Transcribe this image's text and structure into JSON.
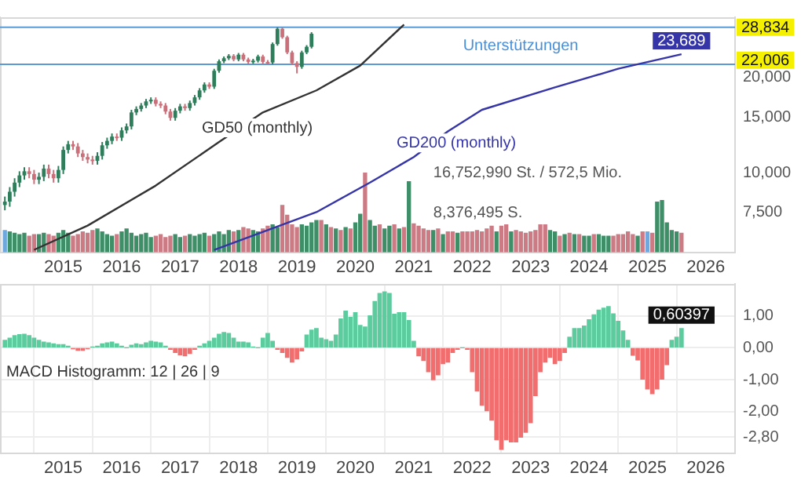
{
  "chart_data": [
    {
      "type": "candlestick",
      "x": [
        "2014-01",
        "2014-02",
        "2014-03",
        "2014-04",
        "2014-05",
        "2014-06",
        "2014-07",
        "2014-08",
        "2014-09",
        "2014-10",
        "2014-11",
        "2014-12",
        "2015-01",
        "2015-02",
        "2015-03",
        "2015-04",
        "2015-05",
        "2015-06",
        "2015-07",
        "2015-08",
        "2015-09",
        "2015-10",
        "2015-11",
        "2015-12",
        "2016-01",
        "2016-02",
        "2016-03",
        "2016-04",
        "2016-05",
        "2016-06",
        "2016-07",
        "2016-08",
        "2016-09",
        "2016-10",
        "2016-11",
        "2016-12",
        "2017-01",
        "2017-02",
        "2017-03",
        "2017-04",
        "2017-05",
        "2017-06",
        "2017-07",
        "2017-08",
        "2017-09",
        "2017-10",
        "2017-11",
        "2017-12",
        "2018-01",
        "2018-02",
        "2018-03",
        "2018-04",
        "2018-05",
        "2018-06",
        "2018-07",
        "2018-08",
        "2018-09",
        "2018-10",
        "2018-11",
        "2018-12",
        "2019-01",
        "2019-02",
        "2019-03",
        "2019-04",
        "2019-05",
        "2019-06",
        "2019-07",
        "2019-08",
        "2019-09",
        "2019-10",
        "2019-11",
        "2019-12",
        "2020-01",
        "2020-02",
        "2020-03",
        "2020-04",
        "2020-05",
        "2020-06",
        "2020-07",
        "2020-08",
        "2020-09",
        "2020-10",
        "2020-11",
        "2020-12",
        "2021-01",
        "2021-02",
        "2021-03",
        "2021-04",
        "2021-05",
        "2021-06",
        "2021-07",
        "2021-08",
        "2021-09",
        "2021-10",
        "2021-11",
        "2021-12",
        "2022-01",
        "2022-02",
        "2022-03",
        "2022-04",
        "2022-05",
        "2022-06",
        "2022-07",
        "2022-08",
        "2022-09",
        "2022-10",
        "2022-11",
        "2022-12",
        "2023-01",
        "2023-02",
        "2023-03",
        "2023-04",
        "2023-05",
        "2023-06",
        "2023-07",
        "2023-08",
        "2023-09",
        "2023-10",
        "2023-11",
        "2023-12",
        "2024-01",
        "2024-02",
        "2024-03",
        "2024-04",
        "2024-05",
        "2024-06",
        "2024-07",
        "2024-08",
        "2024-09",
        "2024-10",
        "2024-11",
        "2024-12",
        "2025-01",
        "2025-02",
        "2025-03",
        "2025-04",
        "2025-05",
        "2025-06",
        "2025-07",
        "2025-08"
      ],
      "ohlc": [
        [
          7900,
          8400,
          7600,
          8100
        ],
        [
          8100,
          9000,
          7800,
          8700
        ],
        [
          8700,
          9600,
          8400,
          9300
        ],
        [
          9300,
          10100,
          9000,
          9800
        ],
        [
          9800,
          10400,
          9500,
          10100
        ],
        [
          10100,
          10400,
          9600,
          9900
        ],
        [
          9900,
          10200,
          9200,
          9500
        ],
        [
          9500,
          10000,
          9200,
          9700
        ],
        [
          9700,
          10600,
          9400,
          10300
        ],
        [
          10300,
          10600,
          9600,
          9900
        ],
        [
          9900,
          10200,
          9300,
          9600
        ],
        [
          9600,
          10500,
          9300,
          10200
        ],
        [
          10200,
          12100,
          9900,
          11800
        ],
        [
          11800,
          12600,
          11500,
          12300
        ],
        [
          12300,
          12600,
          11800,
          12100
        ],
        [
          12100,
          12400,
          11200,
          11500
        ],
        [
          11500,
          11800,
          10900,
          11200
        ],
        [
          11200,
          11500,
          10700,
          11000
        ],
        [
          11000,
          11300,
          10600,
          10900
        ],
        [
          10900,
          11600,
          10600,
          11300
        ],
        [
          11300,
          12500,
          11000,
          12200
        ],
        [
          12200,
          12900,
          11900,
          12600
        ],
        [
          12600,
          13300,
          12300,
          13000
        ],
        [
          13000,
          13300,
          12600,
          12900
        ],
        [
          12900,
          13900,
          12600,
          13600
        ],
        [
          13600,
          14300,
          13300,
          14000
        ],
        [
          14000,
          15800,
          13700,
          15500
        ],
        [
          15500,
          16200,
          15200,
          15900
        ],
        [
          15900,
          16600,
          15600,
          16300
        ],
        [
          16300,
          17100,
          16000,
          16800
        ],
        [
          16800,
          17300,
          16500,
          17000
        ],
        [
          17000,
          17300,
          16200,
          16500
        ],
        [
          16500,
          16800,
          16000,
          16300
        ],
        [
          16300,
          16600,
          15300,
          15600
        ],
        [
          15600,
          15900,
          14600,
          14900
        ],
        [
          14900,
          16000,
          14600,
          15700
        ],
        [
          15700,
          16500,
          15400,
          16200
        ],
        [
          16200,
          16500,
          15700,
          16000
        ],
        [
          16000,
          16900,
          15700,
          16600
        ],
        [
          16600,
          17600,
          16300,
          17300
        ],
        [
          17300,
          18500,
          17000,
          18200
        ],
        [
          18200,
          19300,
          17900,
          19000
        ],
        [
          19000,
          19300,
          18400,
          18700
        ],
        [
          18700,
          21300,
          18400,
          21000
        ],
        [
          21000,
          22800,
          20700,
          22500
        ],
        [
          22500,
          23300,
          22200,
          23000
        ],
        [
          23000,
          23700,
          22700,
          23400
        ],
        [
          23400,
          23700,
          22500,
          22800
        ],
        [
          22800,
          23900,
          22500,
          23600
        ],
        [
          23600,
          23900,
          22500,
          22800
        ],
        [
          22800,
          23100,
          22100,
          22400
        ],
        [
          22400,
          22900,
          22100,
          22600
        ],
        [
          22600,
          23600,
          22300,
          23300
        ],
        [
          23300,
          23600,
          22100,
          22400
        ],
        [
          22400,
          22700,
          22000,
          22300
        ],
        [
          22300,
          25800,
          22000,
          25500
        ],
        [
          25500,
          28800,
          25200,
          28500
        ],
        [
          28500,
          28800,
          26500,
          26800
        ],
        [
          26800,
          27100,
          23700,
          24000
        ],
        [
          24000,
          24300,
          21900,
          22200
        ],
        [
          22200,
          22500,
          20600,
          21600
        ],
        [
          21600,
          24300,
          21300,
          24000
        ],
        [
          24000,
          25300,
          23700,
          25000
        ],
        [
          25000,
          27800,
          24700,
          27500
        ],
        null,
        null,
        null,
        null,
        null,
        null,
        null,
        null,
        null,
        null,
        null,
        null,
        null,
        null,
        null,
        null,
        null,
        null,
        null,
        null,
        null,
        null,
        null,
        null,
        null,
        null,
        null,
        null,
        null,
        null,
        null,
        null,
        null,
        null,
        null,
        null,
        null,
        null,
        null,
        null,
        null,
        null,
        null,
        null,
        null,
        null,
        null,
        null,
        null,
        null,
        null,
        null,
        null,
        null,
        null,
        null,
        null,
        null,
        null,
        null,
        null,
        null,
        null,
        null,
        null,
        null,
        null,
        null,
        null,
        null,
        null,
        null,
        null,
        null,
        null,
        null
      ],
      "colors": [
        "#2e7d5b",
        "#2e7d5b",
        "#2e7d5b",
        "#2e7d5b",
        "#2e7d5b",
        "#c9707a",
        "#c9707a",
        "#2e7d5b",
        "#2e7d5b",
        "#c9707a",
        "#c9707a",
        "#2e7d5b",
        "#2e7d5b",
        "#2e7d5b",
        "#c9707a",
        "#c9707a",
        "#c9707a",
        "#c9707a",
        "#c9707a",
        "#2e7d5b",
        "#2e7d5b",
        "#2e7d5b",
        "#2e7d5b",
        "#c9707a",
        "#2e7d5b",
        "#2e7d5b",
        "#2e7d5b",
        "#2e7d5b",
        "#2e7d5b",
        "#2e7d5b",
        "#2e7d5b",
        "#c9707a",
        "#c9707a",
        "#c9707a",
        "#c9707a",
        "#2e7d5b",
        "#2e7d5b",
        "#c9707a",
        "#2e7d5b",
        "#2e7d5b",
        "#2e7d5b",
        "#2e7d5b",
        "#c9707a",
        "#2e7d5b",
        "#2e7d5b",
        "#2e7d5b",
        "#2e7d5b",
        "#c9707a",
        "#2e7d5b",
        "#c9707a",
        "#c9707a",
        "#2e7d5b",
        "#2e7d5b",
        "#c9707a",
        "#c9707a",
        "#2e7d5b",
        "#2e7d5b",
        "#c9707a",
        "#c9707a",
        "#c9707a",
        "#c9707a",
        "#2e7d5b",
        "#2e7d5b",
        "#2e7d5b",
        null,
        null,
        null,
        null,
        null,
        null,
        null,
        null,
        null,
        null,
        null,
        null,
        null,
        null,
        null,
        null,
        null,
        null,
        null,
        null,
        null,
        null,
        null,
        null,
        null,
        null,
        null,
        null,
        null,
        null,
        null,
        null,
        null,
        null,
        null,
        null,
        null,
        null,
        null,
        null,
        null,
        null,
        null,
        null,
        null,
        null,
        null,
        null,
        null,
        null,
        null,
        null,
        null,
        null,
        null,
        null,
        null,
        null,
        null,
        null,
        null,
        null,
        null,
        null,
        null,
        null,
        null,
        null,
        null,
        null,
        null,
        null,
        null,
        null,
        null,
        null
      ],
      "xlim": [
        "2013-12",
        "2026-07"
      ],
      "xticks": [
        "2015",
        "2016",
        "2017",
        "2018",
        "2019",
        "2020",
        "2021",
        "2022",
        "2023",
        "2024",
        "2025",
        "2026"
      ],
      "ylim": [
        5600,
        31000
      ],
      "log": true,
      "yticks": [
        {
          "value": 20000,
          "label": "20,000"
        },
        {
          "value": 15000,
          "label": "15,000"
        },
        {
          "value": 10000,
          "label": "10,000"
        },
        {
          "value": 7500,
          "label": "7,500"
        }
      ],
      "y2lim": [
        0,
        49600000
      ],
      "y2ticks": [
        {
          "value": 8376495,
          "label": "8,376,495"
        },
        {
          "value": 16752990,
          "label": "16,752,990"
        }
      ],
      "series": [
        {
          "type": "bar",
          "axis": "y2",
          "values": [
            4600000,
            4300000,
            4000000,
            3700000,
            4000000,
            3400000,
            3700000,
            3700000,
            4000000,
            3700000,
            3400000,
            4000000,
            4600000,
            4000000,
            3400000,
            3700000,
            4300000,
            4000000,
            4600000,
            4900000,
            4300000,
            3700000,
            3400000,
            3700000,
            4300000,
            4900000,
            4000000,
            3400000,
            3700000,
            4000000,
            3100000,
            3400000,
            3700000,
            3100000,
            3400000,
            3700000,
            3100000,
            3400000,
            3700000,
            3400000,
            3700000,
            4000000,
            3400000,
            3700000,
            4300000,
            3700000,
            4600000,
            4300000,
            4600000,
            5200000,
            4900000,
            4600000,
            4300000,
            4900000,
            5500000,
            5800000,
            5200000,
            9900000,
            7800000,
            5800000,
            5200000,
            5800000,
            5500000,
            6200000,
            6700000,
            6700000,
            5800000,
            5200000,
            4900000,
            4600000,
            5200000,
            4900000,
            6200000,
            8000000,
            16700000,
            6700000,
            5500000,
            5800000,
            4900000,
            5500000,
            5800000,
            4900000,
            5200000,
            14900000,
            6000000,
            5500000,
            4900000,
            4600000,
            4600000,
            4900000,
            3700000,
            4300000,
            4300000,
            4000000,
            4300000,
            4300000,
            4300000,
            4600000,
            4300000,
            4900000,
            5500000,
            4300000,
            5500000,
            5800000,
            4300000,
            4600000,
            4300000,
            4000000,
            4300000,
            4600000,
            5800000,
            5800000,
            4600000,
            4300000,
            3400000,
            3700000,
            4000000,
            3700000,
            3700000,
            3400000,
            3400000,
            3700000,
            3700000,
            3400000,
            3400000,
            3400000,
            3700000,
            3700000,
            4300000,
            3700000,
            3400000,
            4300000,
            4300000,
            4000000,
            10600000,
            10900000,
            6200000,
            4600000,
            4300000,
            4000000
          ],
          "colors": [
            "#6fa8dc",
            "#3e8e68",
            "#3e8e68",
            "#3e8e68",
            "#3e8e68",
            "#cc7a84",
            "#cc7a84",
            "#3e8e68",
            "#3e8e68",
            "#cc7a84",
            "#cc7a84",
            "#3e8e68",
            "#3e8e68",
            "#3e8e68",
            "#cc7a84",
            "#cc7a84",
            "#cc7a84",
            "#cc7a84",
            "#cc7a84",
            "#3e8e68",
            "#3e8e68",
            "#3e8e68",
            "#3e8e68",
            "#cc7a84",
            "#3e8e68",
            "#3e8e68",
            "#3e8e68",
            "#3e8e68",
            "#3e8e68",
            "#3e8e68",
            "#3e8e68",
            "#cc7a84",
            "#cc7a84",
            "#cc7a84",
            "#cc7a84",
            "#3e8e68",
            "#3e8e68",
            "#cc7a84",
            "#3e8e68",
            "#3e8e68",
            "#3e8e68",
            "#3e8e68",
            "#cc7a84",
            "#3e8e68",
            "#3e8e68",
            "#3e8e68",
            "#3e8e68",
            "#cc7a84",
            "#3e8e68",
            "#cc7a84",
            "#cc7a84",
            "#3e8e68",
            "#3e8e68",
            "#cc7a84",
            "#cc7a84",
            "#3e8e68",
            "#3e8e68",
            "#cc7a84",
            "#cc7a84",
            "#cc7a84",
            "#cc7a84",
            "#3e8e68",
            "#3e8e68",
            "#3e8e68",
            "#3e8e68",
            "#cc7a84",
            "#3e8e68",
            "#cc7a84",
            "#3e8e68",
            "#cc7a84",
            "#3e8e68",
            "#cc7a84",
            "#3e8e68",
            "#3e8e68",
            "#cc7a84",
            "#3e8e68",
            "#3e8e68",
            "#cc7a84",
            "#3e8e68",
            "#3e8e68",
            "#cc7a84",
            "#3e8e68",
            "#cc7a84",
            "#3e8e68",
            "#cc7a84",
            "#cc7a84",
            "#cc7a84",
            "#cc7a84",
            "#3e8e68",
            "#cc7a84",
            "#3e8e68",
            "#cc7a84",
            "#cc7a84",
            "#3e8e68",
            "#cc7a84",
            "#cc7a84",
            "#cc7a84",
            "#cc7a84",
            "#cc7a84",
            "#cc7a84",
            "#cc7a84",
            "#3e8e68",
            "#cc7a84",
            "#cc7a84",
            "#3e8e68",
            "#cc7a84",
            "#cc7a84",
            "#cc7a84",
            "#cc7a84",
            "#cc7a84",
            "#cc7a84",
            "#cc7a84",
            "#3e8e68",
            "#3e8e68",
            "#cc7a84",
            "#3e8e68",
            "#cc7a84",
            "#3e8e68",
            "#cc7a84",
            "#3e8e68",
            "#3e8e68",
            "#cc7a84",
            "#3e8e68",
            "#3e8e68",
            "#3e8e68",
            "#cc7a84",
            "#cc7a84",
            "#cc7a84",
            "#cc7a84",
            "#cc7a84",
            "#3e8e68",
            "#cc7a84",
            "#6fa8dc",
            "#cc7a84",
            "#3e8e68",
            "#3e8e68",
            "#3e8e68",
            "#3e8e68",
            "#3e8e68",
            "#cc7a84"
          ]
        },
        {
          "type": "line",
          "name": "GD50 (monthly)",
          "color": "#333333",
          "x": [
            "2014-07",
            "2015-06",
            "2016-08",
            "2017-09",
            "2018-06",
            "2019-05",
            "2020-02",
            "2020-11"
          ],
          "values": [
            5700,
            6800,
            9100,
            12500,
            15500,
            18200,
            21800,
            29400
          ]
        },
        {
          "type": "line",
          "name": "GD200 (monthly)",
          "color": "#3535a8",
          "x": [
            "2017-08",
            "2019-05",
            "2020-04",
            "2021-01",
            "2021-08",
            "2022-03",
            "2023-06",
            "2024-07",
            "2025-08"
          ],
          "values": [
            5700,
            7500,
            9300,
            11200,
            13500,
            15800,
            18600,
            21300,
            23689
          ],
          "value_labels": [
            null,
            null,
            null,
            null,
            null,
            null,
            null,
            null,
            "23,689"
          ]
        }
      ],
      "ref_lines": [
        {
          "axis": "y",
          "value": 28834,
          "label": "28,834",
          "color": "#5b9bd5"
        },
        {
          "axis": "y",
          "value": 22006,
          "label": "22,006",
          "color": "#5b9bd5"
        }
      ],
      "annotations": [
        "Unterstützungen",
        "S.",
        "St. / 572,5 Mio."
      ],
      "grid": false,
      "legend": false
    },
    {
      "type": "bar",
      "title": "MACD Histogramm: 12 | 26 | 9",
      "x": [
        "2014-01",
        "2014-02",
        "2014-03",
        "2014-04",
        "2014-05",
        "2014-06",
        "2014-07",
        "2014-08",
        "2014-09",
        "2014-10",
        "2014-11",
        "2014-12",
        "2015-01",
        "2015-02",
        "2015-03",
        "2015-04",
        "2015-05",
        "2015-06",
        "2015-07",
        "2015-08",
        "2015-09",
        "2015-10",
        "2015-11",
        "2015-12",
        "2016-01",
        "2016-02",
        "2016-03",
        "2016-04",
        "2016-05",
        "2016-06",
        "2016-07",
        "2016-08",
        "2016-09",
        "2016-10",
        "2016-11",
        "2016-12",
        "2017-01",
        "2017-02",
        "2017-03",
        "2017-04",
        "2017-05",
        "2017-06",
        "2017-07",
        "2017-08",
        "2017-09",
        "2017-10",
        "2017-11",
        "2017-12",
        "2018-01",
        "2018-02",
        "2018-03",
        "2018-04",
        "2018-05",
        "2018-06",
        "2018-07",
        "2018-08",
        "2018-09",
        "2018-10",
        "2018-11",
        "2018-12",
        "2019-01",
        "2019-02",
        "2019-03",
        "2019-04",
        "2019-05",
        "2019-06",
        "2019-07",
        "2019-08",
        "2019-09",
        "2019-10",
        "2019-11",
        "2019-12",
        "2020-01",
        "2020-02",
        "2020-03",
        "2020-04",
        "2020-05",
        "2020-06",
        "2020-07",
        "2020-08",
        "2020-09",
        "2020-10",
        "2020-11",
        "2020-12",
        "2021-01",
        "2021-02",
        "2021-03",
        "2021-04",
        "2021-05",
        "2021-06",
        "2021-07",
        "2021-08",
        "2021-09",
        "2021-10",
        "2021-11",
        "2021-12",
        "2022-01",
        "2022-02",
        "2022-03",
        "2022-04",
        "2022-05",
        "2022-06",
        "2022-07",
        "2022-08",
        "2022-09",
        "2022-10",
        "2022-11",
        "2022-12",
        "2023-01",
        "2023-02",
        "2023-03",
        "2023-04",
        "2023-05",
        "2023-06",
        "2023-07",
        "2023-08",
        "2023-09",
        "2023-10",
        "2023-11",
        "2023-12",
        "2024-01",
        "2024-02",
        "2024-03",
        "2024-04",
        "2024-05",
        "2024-06",
        "2024-07",
        "2024-08",
        "2024-09",
        "2024-10",
        "2024-11",
        "2024-12",
        "2025-01",
        "2025-02",
        "2025-03",
        "2025-04",
        "2025-05",
        "2025-06",
        "2025-07",
        "2025-08"
      ],
      "values": [
        0.23,
        0.3,
        0.38,
        0.41,
        0.42,
        0.38,
        0.3,
        0.23,
        0.18,
        0.15,
        0.12,
        0.1,
        0.1,
        0.05,
        -0.03,
        -0.08,
        -0.08,
        -0.03,
        0.02,
        0.05,
        0.12,
        0.15,
        0.18,
        0.12,
        0.05,
        0.0,
        0.08,
        0.12,
        0.1,
        0.15,
        0.2,
        0.18,
        0.15,
        0.05,
        -0.05,
        -0.15,
        -0.22,
        -0.25,
        -0.18,
        -0.05,
        0.05,
        0.12,
        0.2,
        0.3,
        0.42,
        0.48,
        0.45,
        0.3,
        0.18,
        0.18,
        0.15,
        0.02,
        0.0,
        0.3,
        0.45,
        0.2,
        -0.05,
        -0.15,
        -0.3,
        -0.45,
        -0.35,
        -0.1,
        0.4,
        0.55,
        0.6,
        0.3,
        0.25,
        0.2,
        0.4,
        0.9,
        1.15,
        0.95,
        1.1,
        0.7,
        0.65,
        1.0,
        1.45,
        1.7,
        1.75,
        1.7,
        1.05,
        1.1,
        1.1,
        0.85,
        0.2,
        -0.25,
        -0.4,
        -0.75,
        -1.0,
        -0.85,
        -0.5,
        -0.45,
        -0.15,
        -0.05,
        0.0,
        -0.05,
        -0.75,
        -1.35,
        -1.8,
        -1.97,
        -2.27,
        -2.88,
        -3.18,
        -2.88,
        -2.95,
        -2.95,
        -2.8,
        -2.65,
        -2.35,
        -1.5,
        -0.75,
        -0.45,
        -0.3,
        -0.5,
        -0.4,
        -0.15,
        0.33,
        0.6,
        0.6,
        0.68,
        0.88,
        1.03,
        1.18,
        1.24,
        1.29,
        1.06,
        0.83,
        0.53,
        0.23,
        -0.23,
        -0.38,
        -0.98,
        -1.29,
        -1.44,
        -1.29,
        -0.98,
        -0.53,
        0.23,
        0.33,
        0.60397
      ],
      "colors": [
        "#5ccc9e",
        "#5ccc9e",
        "#5ccc9e",
        "#5ccc9e",
        "#5ccc9e",
        "#5ccc9e",
        "#5ccc9e",
        "#5ccc9e",
        "#5ccc9e",
        "#5ccc9e",
        "#5ccc9e",
        "#5ccc9e",
        "#5ccc9e",
        "#5ccc9e",
        "#f26d6d",
        "#f26d6d",
        "#f26d6d",
        "#f26d6d",
        "#5ccc9e",
        "#5ccc9e",
        "#5ccc9e",
        "#5ccc9e",
        "#5ccc9e",
        "#5ccc9e",
        "#5ccc9e",
        "#5ccc9e",
        "#5ccc9e",
        "#5ccc9e",
        "#5ccc9e",
        "#5ccc9e",
        "#5ccc9e",
        "#5ccc9e",
        "#5ccc9e",
        "#5ccc9e",
        "#f26d6d",
        "#f26d6d",
        "#f26d6d",
        "#f26d6d",
        "#f26d6d",
        "#f26d6d",
        "#5ccc9e",
        "#5ccc9e",
        "#5ccc9e",
        "#5ccc9e",
        "#5ccc9e",
        "#5ccc9e",
        "#5ccc9e",
        "#5ccc9e",
        "#5ccc9e",
        "#5ccc9e",
        "#5ccc9e",
        "#5ccc9e",
        "#5ccc9e",
        "#5ccc9e",
        "#5ccc9e",
        "#5ccc9e",
        "#f26d6d",
        "#f26d6d",
        "#f26d6d",
        "#f26d6d",
        "#f26d6d",
        "#f26d6d",
        "#5ccc9e",
        "#5ccc9e",
        "#5ccc9e",
        "#5ccc9e",
        "#5ccc9e",
        "#5ccc9e",
        "#5ccc9e",
        "#5ccc9e",
        "#5ccc9e",
        "#5ccc9e",
        "#5ccc9e",
        "#5ccc9e",
        "#5ccc9e",
        "#5ccc9e",
        "#5ccc9e",
        "#5ccc9e",
        "#5ccc9e",
        "#5ccc9e",
        "#5ccc9e",
        "#5ccc9e",
        "#5ccc9e",
        "#5ccc9e",
        "#5ccc9e",
        "#f26d6d",
        "#f26d6d",
        "#f26d6d",
        "#f26d6d",
        "#f26d6d",
        "#f26d6d",
        "#f26d6d",
        "#f26d6d",
        "#f26d6d",
        "#5ccc9e",
        "#f26d6d",
        "#f26d6d",
        "#f26d6d",
        "#f26d6d",
        "#f26d6d",
        "#f26d6d",
        "#f26d6d",
        "#f26d6d",
        "#f26d6d",
        "#f26d6d",
        "#f26d6d",
        "#f26d6d",
        "#f26d6d",
        "#f26d6d",
        "#f26d6d",
        "#f26d6d",
        "#f26d6d",
        "#f26d6d",
        "#f26d6d",
        "#f26d6d",
        "#f26d6d",
        "#5ccc9e",
        "#5ccc9e",
        "#5ccc9e",
        "#5ccc9e",
        "#5ccc9e",
        "#5ccc9e",
        "#5ccc9e",
        "#5ccc9e",
        "#5ccc9e",
        "#5ccc9e",
        "#5ccc9e",
        "#5ccc9e",
        "#5ccc9e",
        "#f26d6d",
        "#f26d6d",
        "#f26d6d",
        "#f26d6d",
        "#f26d6d",
        "#f26d6d",
        "#f26d6d",
        "#f26d6d",
        "#5ccc9e",
        "#5ccc9e",
        "#5ccc9e"
      ],
      "xlim": [
        "2013-12",
        "2026-07"
      ],
      "xticks": [
        "2015",
        "2016",
        "2017",
        "2018",
        "2019",
        "2020",
        "2021",
        "2022",
        "2023",
        "2024",
        "2025",
        "2026"
      ],
      "ylim": [
        -3.3,
        2.0
      ],
      "yticks": [
        {
          "value": 1,
          "label": "1,00"
        },
        {
          "value": 0,
          "label": "0,00"
        },
        {
          "value": -1,
          "label": "-1,00"
        },
        {
          "value": -2,
          "label": "-2,00"
        },
        {
          "value": -2.8,
          "label": "-2,80"
        }
      ],
      "value_labels": [
        null,
        null,
        null,
        null,
        null,
        null,
        null,
        null,
        null,
        null,
        null,
        null,
        null,
        null,
        null,
        null,
        null,
        null,
        null,
        null,
        null,
        null,
        null,
        null,
        null,
        null,
        null,
        null,
        null,
        null,
        null,
        null,
        null,
        null,
        null,
        null,
        null,
        null,
        null,
        null,
        null,
        null,
        null,
        null,
        null,
        null,
        null,
        null,
        null,
        null,
        null,
        null,
        null,
        null,
        null,
        null,
        null,
        null,
        null,
        null,
        null,
        null,
        null,
        null,
        null,
        null,
        null,
        null,
        null,
        null,
        null,
        null,
        null,
        null,
        null,
        null,
        null,
        null,
        null,
        null,
        null,
        null,
        null,
        null,
        null,
        null,
        null,
        null,
        null,
        null,
        null,
        null,
        null,
        null,
        null,
        null,
        null,
        null,
        null,
        null,
        null,
        null,
        null,
        null,
        null,
        null,
        null,
        null,
        null,
        null,
        null,
        null,
        null,
        null,
        null,
        null,
        null,
        null,
        null,
        null,
        null,
        null,
        null,
        null,
        null,
        null,
        null,
        null,
        null,
        null,
        null,
        null,
        null,
        null,
        null,
        null,
        null,
        null,
        null,
        "0,60397"
      ],
      "grid": true,
      "legend": false
    }
  ]
}
